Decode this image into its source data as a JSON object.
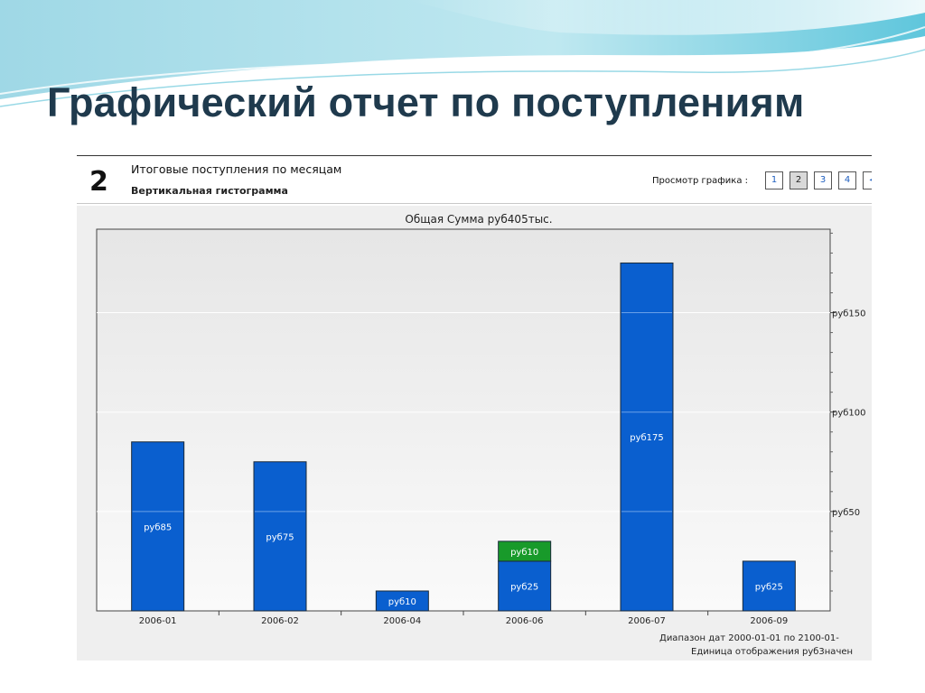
{
  "slide": {
    "title": "Графический отчет по поступлениям"
  },
  "report": {
    "number": "2",
    "heading": "Итоговые поступления по месяцам",
    "subheading": "Вертикальная гистограмма",
    "view_label": "Просмотр графика :",
    "view_buttons": [
      "1",
      "2",
      "3",
      "4"
    ],
    "view_active": "2",
    "footer_range": "Диапазон дат  2000-01-01  по  2100-01-",
    "footer_unit": "Единица отображения руб3начен"
  },
  "colors": {
    "bar_blue": "#0a5fcf",
    "bar_green": "#189a2a",
    "slide_title": "#1f3a4d"
  },
  "chart_data": {
    "type": "bar",
    "stacked": true,
    "title": "Общая Сумма руб405тыс.",
    "categories": [
      "2006-01",
      "2006-02",
      "2006-04",
      "2006-06",
      "2006-07",
      "2006-09"
    ],
    "series": [
      {
        "color": "#0a5fcf",
        "values": [
          85,
          75,
          10,
          25,
          175,
          25
        ],
        "labels": [
          "руб85",
          "руб75",
          "руб10",
          "руб25",
          "руб175",
          "руб25"
        ]
      },
      {
        "color": "#189a2a",
        "values": [
          0,
          0,
          0,
          10,
          0,
          0
        ],
        "labels": [
          "",
          "",
          "",
          "руб10",
          "",
          ""
        ]
      }
    ],
    "yticks": [
      {
        "value": 50,
        "label": "руб50"
      },
      {
        "value": 100,
        "label": "руб100"
      },
      {
        "value": 150,
        "label": "руб150"
      }
    ],
    "ylim": [
      0,
      192
    ],
    "y_axis_side": "right",
    "grid": true
  }
}
